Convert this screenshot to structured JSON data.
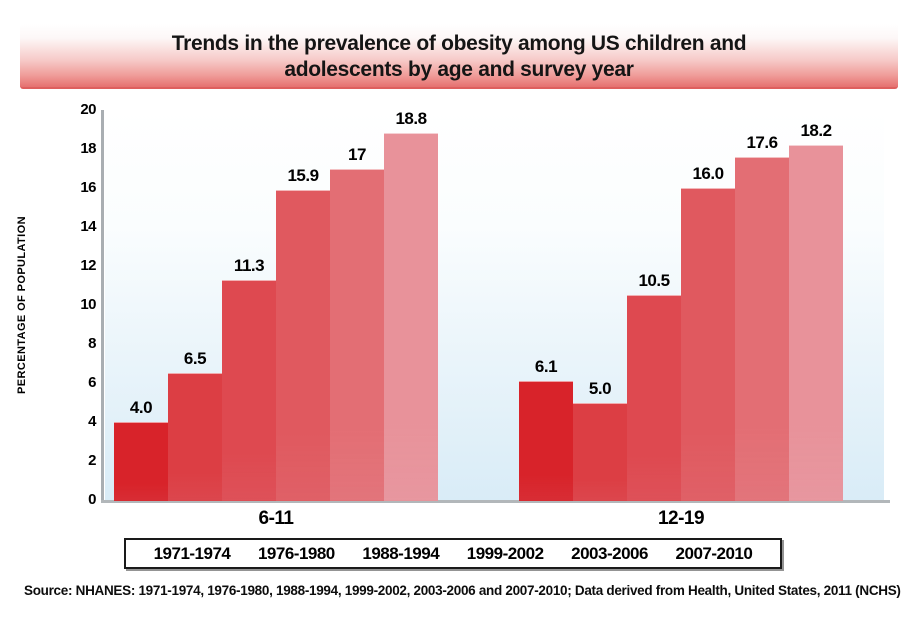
{
  "title": {
    "line1": "Trends in the prevalence of obesity among US children and",
    "line2": "adolescents by age and survey year"
  },
  "source_note": "Source: NHANES: 1971-1974, 1976-1980, 1988-1994, 1999-2002, 2003-2006 and 2007-2010; Data derived from Health, United States, 2011 (NCHS)",
  "chart_data": {
    "type": "bar",
    "title": "Trends in the prevalence of obesity among US children and adolescents by age and survey year",
    "xlabel": "",
    "ylabel": "PERCENTAGE OF POPULATION",
    "ylim": [
      0,
      20
    ],
    "yticks": [
      0,
      2,
      4,
      6,
      8,
      10,
      12,
      14,
      16,
      18,
      20
    ],
    "grid": false,
    "legend_position": "bottom-box",
    "categories": [
      "6-11",
      "12-19"
    ],
    "series": [
      {
        "name": "1971-1974",
        "color": "#d8232a",
        "values": [
          4.0,
          6.1
        ],
        "display": [
          "4.0",
          "6.1"
        ]
      },
      {
        "name": "1976-1980",
        "color": "#dc3e44",
        "values": [
          6.5,
          5.0
        ],
        "display": [
          "6.5",
          "5.0"
        ]
      },
      {
        "name": "1988-1994",
        "color": "#de4950",
        "values": [
          11.3,
          10.5
        ],
        "display": [
          "11.3",
          "10.5"
        ]
      },
      {
        "name": "1999-2002",
        "color": "#e0595f",
        "values": [
          15.9,
          16.0
        ],
        "display": [
          "15.9",
          "16.0"
        ]
      },
      {
        "name": "2003-2006",
        "color": "#e36e74",
        "values": [
          17,
          17.6
        ],
        "display": [
          "17",
          "17.6"
        ]
      },
      {
        "name": "2007-2010",
        "color": "#e8929a",
        "values": [
          18.8,
          18.2
        ],
        "display": [
          "18.8",
          "18.2"
        ]
      }
    ],
    "legend": [
      "1971-1974",
      "1976-1980",
      "1988-1994",
      "1999-2002",
      "2003-2006",
      "2007-2010"
    ]
  },
  "palette": {
    "banner_red": "#e97f7d",
    "banner_border": "#de5f5e",
    "plot_bg_bottom": "#d9ecf7",
    "axis_gray": "#a9aeb2"
  }
}
